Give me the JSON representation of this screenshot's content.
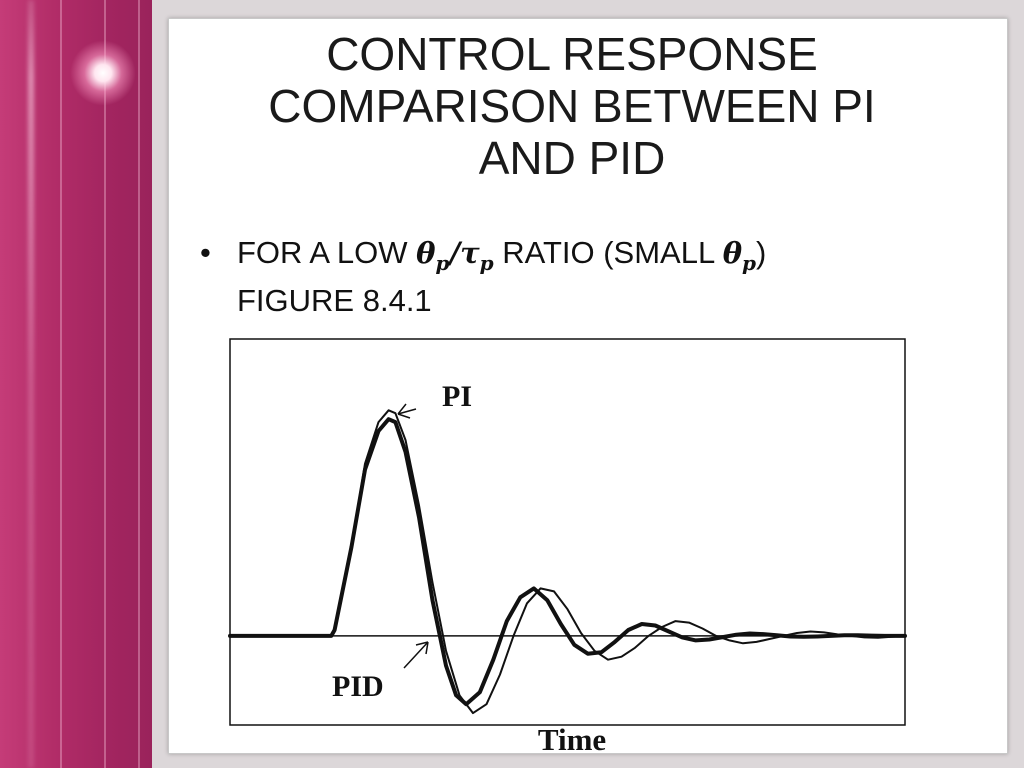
{
  "slide": {
    "title_lines": [
      "CONTROL RESPONSE",
      "COMPARISON BETWEEN PI",
      "AND PID"
    ],
    "bullet": {
      "prefix": "FOR A LOW ",
      "ratio_num_symbol": "θ",
      "ratio_num_sub": "p",
      "ratio_slash": "/",
      "ratio_den_symbol": "τ",
      "ratio_den_sub": "p",
      "middle": " RATIO (SMALL ",
      "small_symbol": "θ",
      "small_sub": "p",
      "suffix": ")",
      "line2": "FIGURE 8.4.1"
    }
  },
  "theme": {
    "accent": "#b22d68",
    "slide_bg": "#ffffff",
    "line": "#111111"
  },
  "chart_data": {
    "type": "line",
    "title": "",
    "xlabel": "Time",
    "ylabel": "",
    "xlim": [
      0,
      10
    ],
    "ylim": [
      -0.3,
      1.0
    ],
    "grid": false,
    "baseline": 0,
    "legend": "none",
    "annotations": [
      {
        "text": "PI",
        "series": "PI"
      },
      {
        "text": "PID",
        "series": "PID"
      }
    ],
    "series": [
      {
        "name": "PI",
        "width": 2.0,
        "x": [
          0,
          1.5,
          1.55,
          1.8,
          2.0,
          2.2,
          2.35,
          2.45,
          2.6,
          2.8,
          3.0,
          3.2,
          3.4,
          3.6,
          3.8,
          4.0,
          4.2,
          4.4,
          4.6,
          4.8,
          5.0,
          5.2,
          5.4,
          5.6,
          5.8,
          6.0,
          6.2,
          6.4,
          6.6,
          6.8,
          7.0,
          7.2,
          7.4,
          7.6,
          7.8,
          8.0,
          8.2,
          8.4,
          8.6,
          8.8,
          9.0,
          9.2,
          9.4,
          9.6,
          9.8,
          10.0
        ],
        "y": [
          0,
          0,
          0.02,
          0.3,
          0.58,
          0.72,
          0.76,
          0.75,
          0.66,
          0.44,
          0.18,
          -0.05,
          -0.2,
          -0.26,
          -0.23,
          -0.13,
          0.0,
          0.11,
          0.16,
          0.15,
          0.09,
          0.01,
          -0.05,
          -0.08,
          -0.07,
          -0.04,
          0.0,
          0.03,
          0.05,
          0.045,
          0.025,
          0.0,
          -0.015,
          -0.025,
          -0.02,
          -0.01,
          0.0,
          0.01,
          0.015,
          0.012,
          0.005,
          0.0,
          -0.005,
          -0.006,
          -0.003,
          0.0
        ]
      },
      {
        "name": "PID",
        "width": 4.0,
        "x": [
          0,
          1.5,
          1.55,
          1.8,
          2.0,
          2.2,
          2.35,
          2.45,
          2.6,
          2.8,
          3.0,
          3.2,
          3.35,
          3.5,
          3.7,
          3.9,
          4.1,
          4.3,
          4.5,
          4.7,
          4.9,
          5.1,
          5.3,
          5.5,
          5.7,
          5.9,
          6.1,
          6.3,
          6.5,
          6.7,
          6.9,
          7.1,
          7.3,
          7.5,
          7.7,
          7.9,
          8.1,
          8.3,
          8.5,
          8.7,
          8.9,
          9.1,
          9.3,
          9.5,
          9.7,
          10.0
        ],
        "y": [
          0,
          0,
          0.02,
          0.3,
          0.56,
          0.69,
          0.73,
          0.72,
          0.62,
          0.4,
          0.12,
          -0.1,
          -0.2,
          -0.23,
          -0.19,
          -0.08,
          0.05,
          0.13,
          0.16,
          0.12,
          0.04,
          -0.03,
          -0.06,
          -0.055,
          -0.02,
          0.02,
          0.04,
          0.035,
          0.015,
          -0.005,
          -0.015,
          -0.012,
          -0.004,
          0.004,
          0.008,
          0.006,
          0.002,
          -0.002,
          -0.003,
          -0.002,
          0.0,
          0.002,
          0.002,
          0.001,
          0.0,
          0.0
        ]
      }
    ]
  }
}
